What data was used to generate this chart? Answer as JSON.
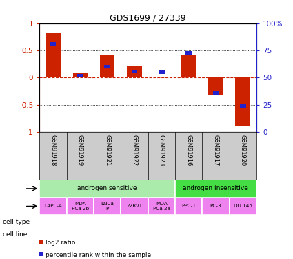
{
  "title": "GDS1699 / 27339",
  "samples": [
    "GSM91918",
    "GSM91919",
    "GSM91921",
    "GSM91922",
    "GSM91923",
    "GSM91916",
    "GSM91917",
    "GSM91920"
  ],
  "log2_ratio": [
    0.82,
    0.08,
    0.42,
    0.22,
    0.0,
    0.42,
    -0.32,
    -0.88
  ],
  "percentile_rank_left": [
    0.62,
    0.04,
    0.2,
    0.12,
    0.1,
    0.46,
    -0.28,
    -0.52
  ],
  "cell_types": [
    {
      "label": "androgen sensitive",
      "span": 5,
      "color": "#aaeaaa"
    },
    {
      "label": "androgen insensitive",
      "span": 3,
      "color": "#44dd44"
    }
  ],
  "cell_lines": [
    {
      "label": "LAPC-4",
      "multiline": false
    },
    {
      "label": "MDA\nPCa 2b",
      "multiline": true
    },
    {
      "label": "LNCa\nP",
      "multiline": true
    },
    {
      "label": "22Rv1",
      "multiline": false
    },
    {
      "label": "MDA\nPCa 2a",
      "multiline": true
    },
    {
      "label": "PPC-1",
      "multiline": false
    },
    {
      "label": "PC-3",
      "multiline": false
    },
    {
      "label": "DU 145",
      "multiline": false
    }
  ],
  "cell_line_color": "#EE82EE",
  "bar_color_red": "#CC2200",
  "bar_color_blue": "#2222CC",
  "ylim_left": [
    -1,
    1
  ],
  "ylim_right": [
    0,
    100
  ],
  "yticks_left": [
    -1,
    -0.5,
    0,
    0.5,
    1
  ],
  "yticks_left_labels": [
    "-1",
    "-0.5",
    "0",
    "0.5",
    "1"
  ],
  "yticks_right": [
    0,
    25,
    50,
    75,
    100
  ],
  "yticks_right_labels": [
    "0",
    "25",
    "50",
    "75",
    "100%"
  ],
  "red_bar_width": 0.55,
  "blue_bar_width": 0.22,
  "blue_bar_height": 0.06,
  "zero_line_color": "#CC2200",
  "grid_color": "black",
  "sample_label_bg": "#cccccc",
  "background_color": "#ffffff",
  "chart_label_fontsize": 7.5,
  "title_fontsize": 9
}
